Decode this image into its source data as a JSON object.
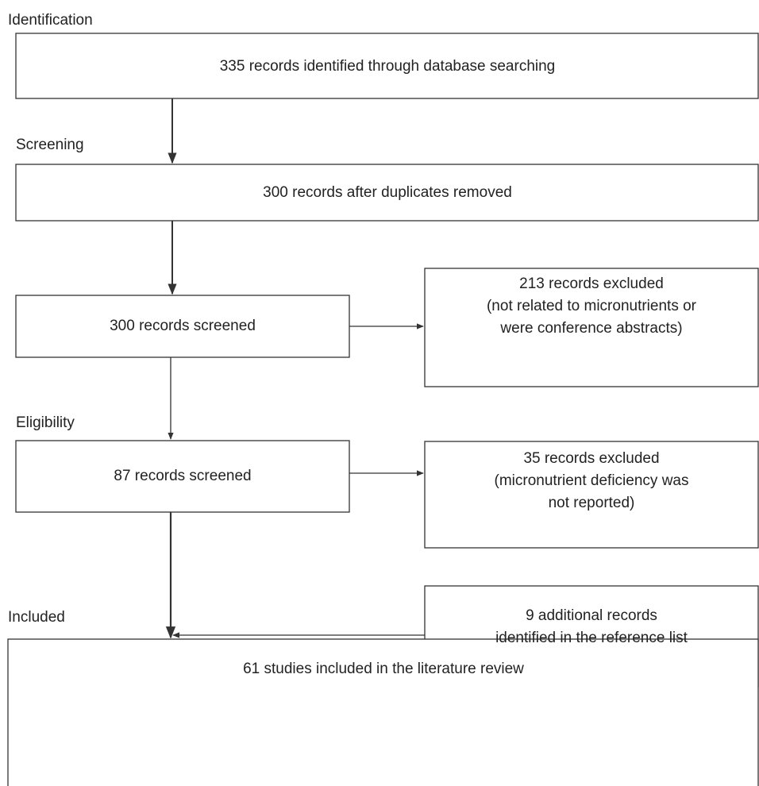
{
  "sections": [
    "Identification",
    "Screening",
    "Eligibility",
    "Included"
  ],
  "nodes": [
    {
      "lines": [
        "335 records identified through database searching"
      ]
    },
    {
      "lines": [
        "300 records after duplicates removed"
      ]
    },
    {
      "lines": [
        "300 records screened"
      ]
    },
    {
      "lines": [
        "213 records excluded",
        "(not related to micronutrients or",
        "were conference abstracts)"
      ]
    },
    {
      "lines": [
        "87 records screened"
      ]
    },
    {
      "lines": [
        "35 records excluded",
        "(micronutrient deficiency was",
        "not reported)"
      ]
    },
    {
      "lines": [
        "9 additional records",
        "identified in the reference list"
      ]
    },
    {
      "lines": [
        "61 studies included in the literature review"
      ]
    }
  ]
}
